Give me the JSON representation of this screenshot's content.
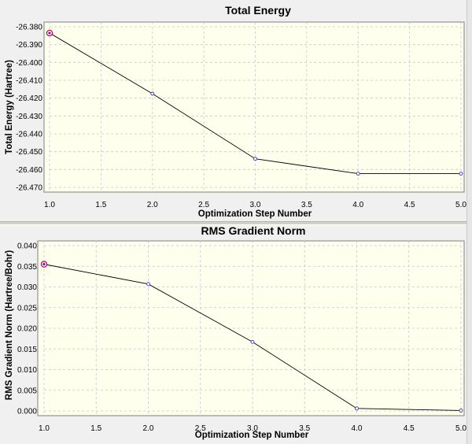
{
  "chart_data": [
    {
      "type": "line",
      "title": "Total Energy",
      "xlabel": "Optimization Step Number",
      "ylabel": "Total Energy (Hartree)",
      "x": [
        1.0,
        2.0,
        3.0,
        4.0,
        5.0
      ],
      "values": [
        -26.3835,
        -26.4175,
        -26.454,
        -26.4623,
        -26.4623
      ],
      "xlim": [
        1.0,
        5.0
      ],
      "ylim": [
        -26.47,
        -26.38
      ],
      "xticks": [
        "1.0",
        "1.5",
        "2.0",
        "2.5",
        "3.0",
        "3.5",
        "4.0",
        "4.5",
        "5.0"
      ],
      "yticks": [
        "-26.380",
        "-26.390",
        "-26.400",
        "-26.410",
        "-26.420",
        "-26.430",
        "-26.440",
        "-26.450",
        "-26.460",
        "-26.470"
      ],
      "grid": true
    },
    {
      "type": "line",
      "title": "RMS Gradient Norm",
      "xlabel": "Optimization Step Number",
      "ylabel": "RMS Gradient Norm (Hartree/Bohr)",
      "x": [
        1.0,
        2.0,
        3.0,
        4.0,
        5.0
      ],
      "values": [
        0.0355,
        0.0307,
        0.0167,
        0.0006,
        0.0001
      ],
      "xlim": [
        1.0,
        5.0
      ],
      "ylim": [
        0.0,
        0.04
      ],
      "xticks": [
        "1.0",
        "1.5",
        "2.0",
        "2.5",
        "3.0",
        "3.5",
        "4.0",
        "4.5",
        "5.0"
      ],
      "yticks": [
        "0.040",
        "0.035",
        "0.030",
        "0.025",
        "0.020",
        "0.015",
        "0.010",
        "0.005",
        "0.000"
      ],
      "grid": true
    }
  ],
  "colors": {
    "plot_background": "#ffffee",
    "series_line": "#000000",
    "point_marker": "#3333cc",
    "first_point_marker": "#cc0033"
  }
}
